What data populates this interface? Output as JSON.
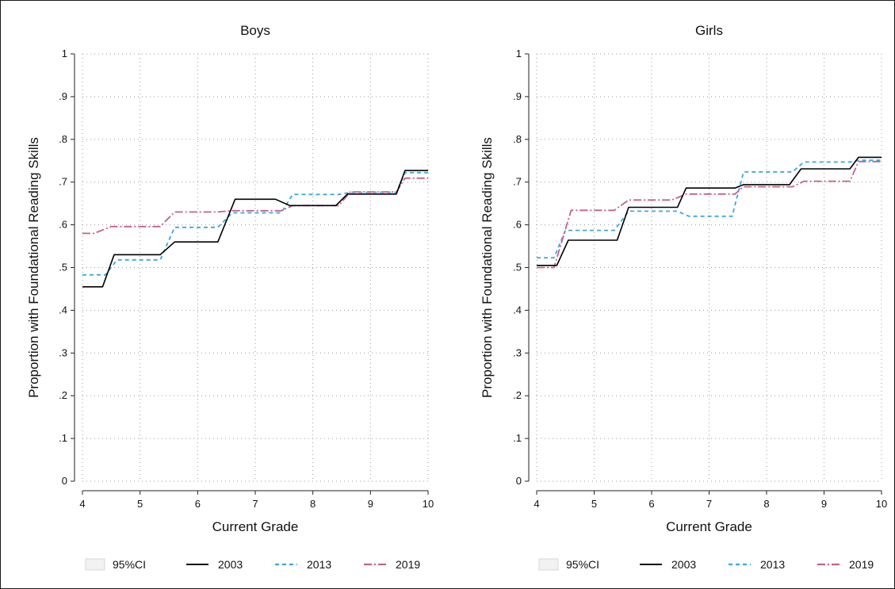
{
  "chart_data": [
    {
      "type": "line",
      "title": "Boys",
      "xlabel": "Current Grade",
      "ylabel": "Proportion with Foundational Reading Skills",
      "xlim": [
        4,
        10
      ],
      "ylim": [
        0,
        1
      ],
      "xticks": [
        "4",
        "5",
        "6",
        "7",
        "8",
        "9",
        "10"
      ],
      "yticks": [
        "0",
        ".1",
        ".2",
        ".3",
        ".4",
        ".5",
        ".6",
        ".7",
        ".8",
        ".9",
        "1"
      ],
      "grid": true,
      "legend": [
        "95%CI",
        "2003",
        "2013",
        "2019"
      ],
      "series": [
        {
          "name": "2003",
          "color": "#000000",
          "style": "solid",
          "x": [
            4,
            4.35,
            4.55,
            5.35,
            5.6,
            6.35,
            6.65,
            7.35,
            7.6,
            8.4,
            8.6,
            9.45,
            9.6,
            10
          ],
          "y": [
            0.455,
            0.455,
            0.53,
            0.53,
            0.56,
            0.56,
            0.66,
            0.66,
            0.645,
            0.645,
            0.672,
            0.672,
            0.727,
            0.727
          ]
        },
        {
          "name": "2013",
          "color": "#3aa8dd",
          "style": "dash",
          "x": [
            4,
            4.4,
            4.6,
            5.35,
            5.6,
            6.35,
            6.6,
            7.45,
            7.65,
            8.45,
            8.65,
            9.45,
            9.6,
            10
          ],
          "y": [
            0.483,
            0.483,
            0.518,
            0.518,
            0.594,
            0.594,
            0.628,
            0.628,
            0.671,
            0.671,
            0.676,
            0.676,
            0.722,
            0.722
          ]
        },
        {
          "name": "2019",
          "color": "#c2628e",
          "style": "dashdot",
          "x": [
            4,
            4.2,
            4.5,
            5.35,
            5.6,
            6.35,
            6.6,
            7.45,
            7.65,
            8.45,
            8.65,
            9.45,
            9.6,
            10
          ],
          "y": [
            0.58,
            0.58,
            0.596,
            0.596,
            0.63,
            0.63,
            0.633,
            0.633,
            0.645,
            0.645,
            0.677,
            0.677,
            0.709,
            0.709
          ]
        }
      ]
    },
    {
      "type": "line",
      "title": "Girls",
      "xlabel": "Current Grade",
      "ylabel": "Proportion with Foundational Reading Skills",
      "xlim": [
        4,
        10
      ],
      "ylim": [
        0,
        1
      ],
      "xticks": [
        "4",
        "5",
        "6",
        "7",
        "8",
        "9",
        "10"
      ],
      "yticks": [
        "0",
        ".1",
        ".2",
        ".3",
        ".4",
        ".5",
        ".6",
        ".7",
        ".8",
        ".9",
        "1"
      ],
      "grid": true,
      "legend": [
        "95%CI",
        "2003",
        "2013",
        "2019"
      ],
      "series": [
        {
          "name": "2003",
          "color": "#000000",
          "style": "solid",
          "x": [
            4,
            4.35,
            4.55,
            5.4,
            5.6,
            6.45,
            6.6,
            7.45,
            7.6,
            8.4,
            8.6,
            9.45,
            9.6,
            10
          ],
          "y": [
            0.505,
            0.505,
            0.564,
            0.564,
            0.641,
            0.641,
            0.686,
            0.686,
            0.694,
            0.694,
            0.731,
            0.731,
            0.758,
            0.758
          ]
        },
        {
          "name": "2013",
          "color": "#3aa8dd",
          "style": "dash",
          "x": [
            4,
            4.3,
            4.5,
            5.35,
            5.6,
            6.45,
            6.65,
            7.4,
            7.6,
            8.45,
            8.65,
            9.45,
            9.6,
            10
          ],
          "y": [
            0.523,
            0.523,
            0.587,
            0.587,
            0.632,
            0.632,
            0.62,
            0.62,
            0.724,
            0.724,
            0.747,
            0.747,
            0.751,
            0.751
          ]
        },
        {
          "name": "2019",
          "color": "#c2628e",
          "style": "dashdot",
          "x": [
            4,
            4.3,
            4.6,
            5.35,
            5.6,
            6.35,
            6.6,
            7.45,
            7.6,
            8.45,
            8.65,
            9.45,
            9.6,
            10
          ],
          "y": [
            0.5,
            0.5,
            0.634,
            0.634,
            0.658,
            0.658,
            0.672,
            0.672,
            0.689,
            0.689,
            0.702,
            0.702,
            0.748,
            0.748
          ]
        }
      ]
    }
  ]
}
